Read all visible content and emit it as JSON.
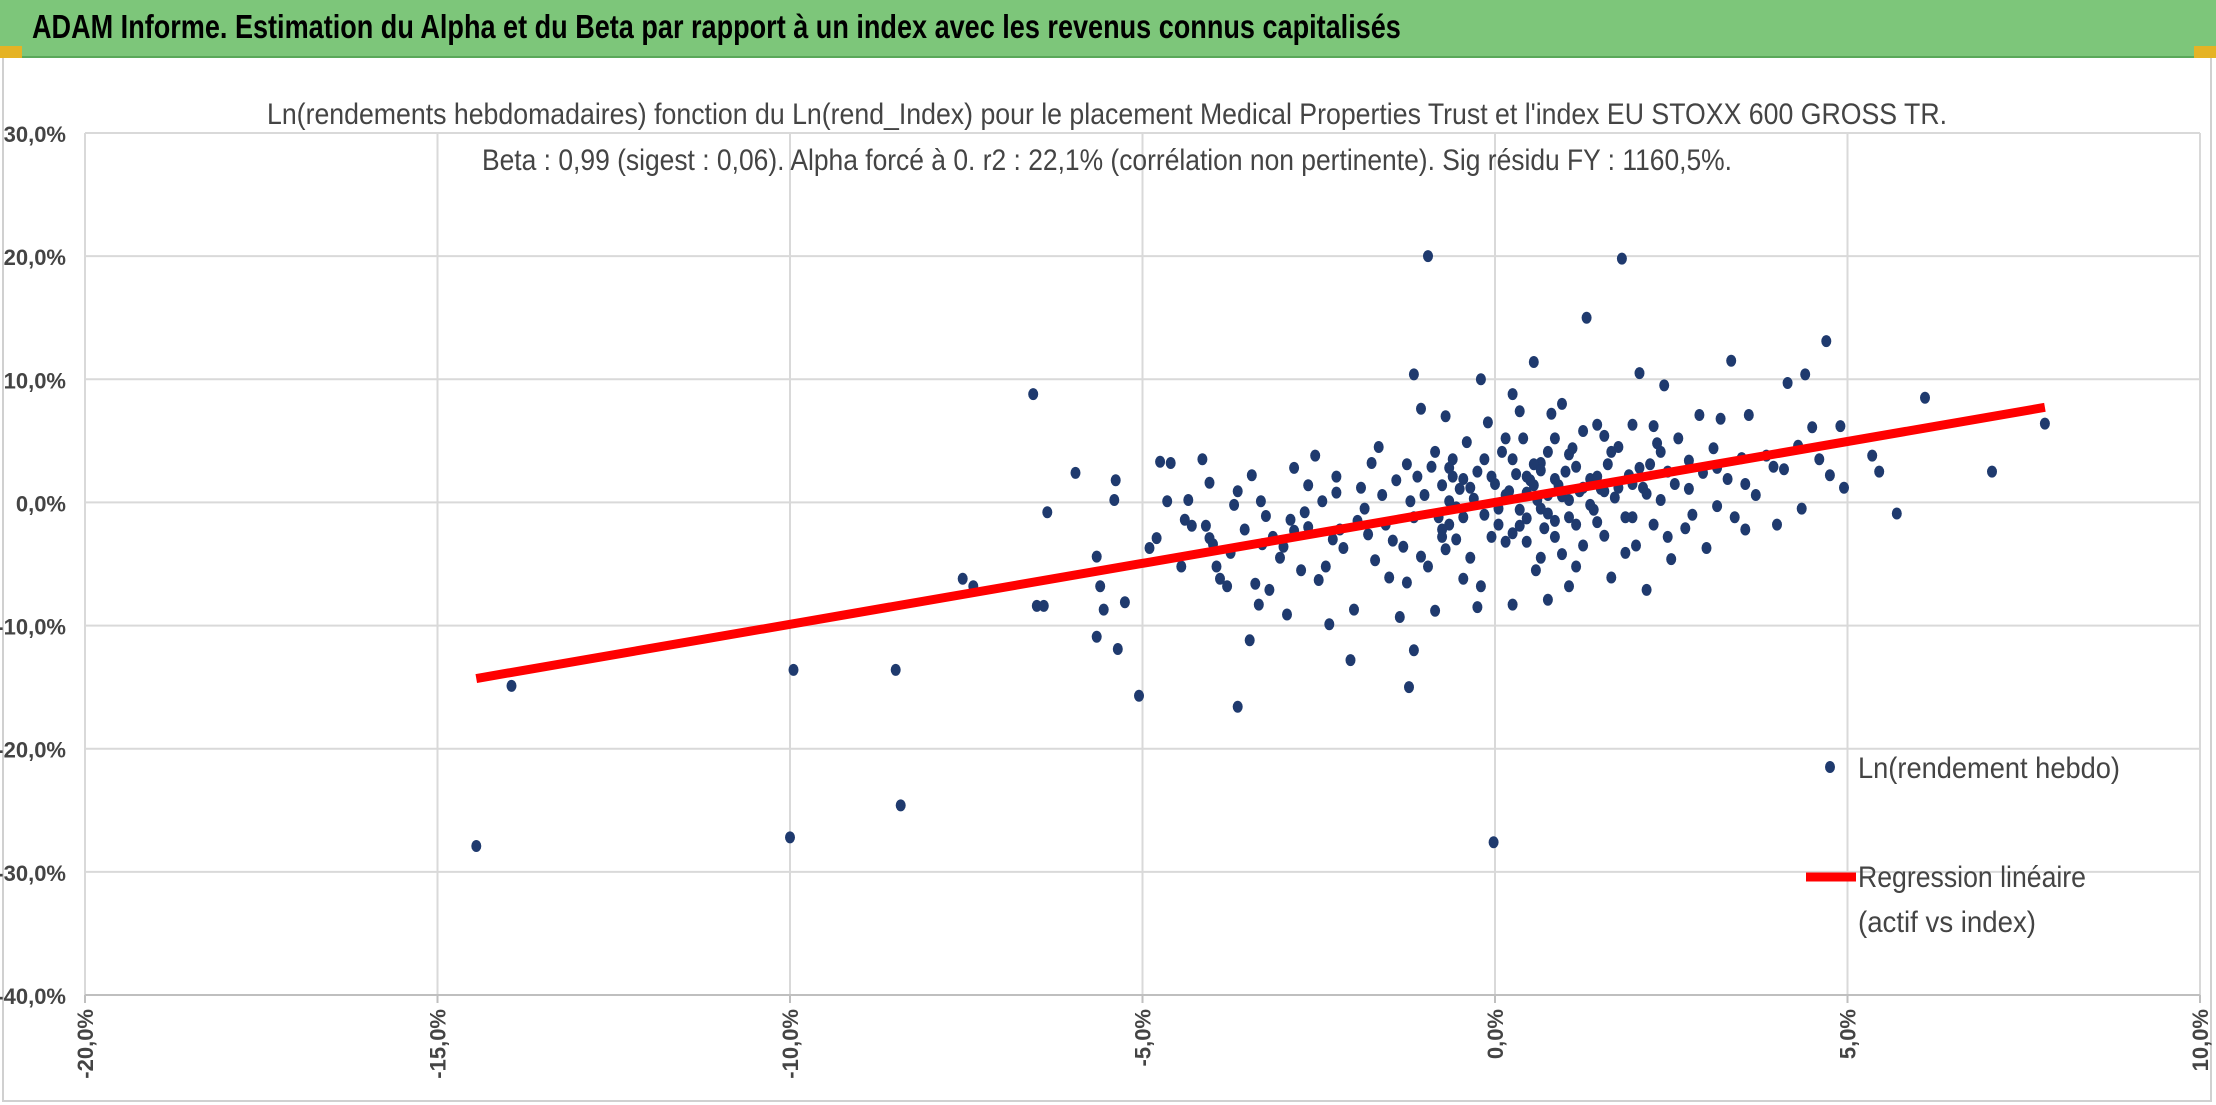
{
  "window": {
    "banner_title": "ADAM Informe. Estimation du Alpha et du Beta par rapport à un index avec les revenus connus capitalisés",
    "banner_color": "#7dc67a"
  },
  "chart_data": {
    "type": "scatter",
    "title": "Ln(rendements hebdomadaires) fonction du Ln(rend_Index) pour le placement Medical Properties Trust  et l'index EU STOXX 600 GROSS TR.",
    "subtitle": "Beta : 0,99 (sigest : 0,06). Alpha forcé à 0. r2 : 22,1% (corrélation non pertinente). Sig résidu FY : 1160,5%.",
    "xlabel": "",
    "ylabel": "",
    "xlim": [
      -0.2,
      0.1
    ],
    "ylim": [
      -0.4,
      0.3
    ],
    "x_ticks": [
      -0.2,
      -0.15,
      -0.1,
      -0.05,
      0.0,
      0.05,
      0.1
    ],
    "x_tick_labels": [
      "-20,0%",
      "-15,0%",
      "-10,0%",
      "-5,0%",
      "0,0%",
      "5,0%",
      "10,0%"
    ],
    "y_ticks": [
      0.3,
      0.2,
      0.1,
      0.0,
      -0.1,
      -0.2,
      -0.3,
      -0.4
    ],
    "y_tick_labels": [
      "30,0%",
      "20,0%",
      "10,0%",
      "0,0%",
      "-10,0%",
      "-20,0%",
      "-30,0%",
      "-40,0%"
    ],
    "grid": true,
    "legend_position": "right",
    "series": [
      {
        "name": "Ln(rendement hebdo)",
        "kind": "scatter",
        "color": "#1f3a6e",
        "points": [
          [
            -0.1445,
            -0.279
          ],
          [
            -0.1395,
            -0.149
          ],
          [
            -0.1,
            -0.272
          ],
          [
            -0.0995,
            -0.136
          ],
          [
            -0.085,
            -0.136
          ],
          [
            -0.0843,
            -0.246
          ],
          [
            -0.0755,
            -0.062
          ],
          [
            -0.074,
            -0.068
          ],
          [
            -0.0655,
            0.088
          ],
          [
            -0.065,
            -0.084
          ],
          [
            -0.064,
            -0.084
          ],
          [
            -0.0635,
            -0.008
          ],
          [
            -0.0595,
            0.024
          ],
          [
            -0.0565,
            -0.044
          ],
          [
            -0.056,
            -0.068
          ],
          [
            -0.0565,
            -0.109
          ],
          [
            -0.0555,
            -0.087
          ],
          [
            -0.054,
            0.002
          ],
          [
            -0.0538,
            0.018
          ],
          [
            -0.0535,
            -0.119
          ],
          [
            -0.0525,
            -0.081
          ],
          [
            -0.0505,
            -0.157
          ],
          [
            -0.049,
            -0.037
          ],
          [
            -0.048,
            -0.029
          ],
          [
            -0.0475,
            0.033
          ],
          [
            -0.0465,
            0.001
          ],
          [
            -0.046,
            0.032
          ],
          [
            -0.044,
            -0.014
          ],
          [
            -0.043,
            -0.019
          ],
          [
            -0.0435,
            0.002
          ],
          [
            -0.0415,
            0.035
          ],
          [
            -0.041,
            -0.019
          ],
          [
            -0.04,
            -0.034
          ],
          [
            -0.0405,
            0.016
          ],
          [
            -0.0395,
            -0.052
          ],
          [
            -0.039,
            -0.062
          ],
          [
            -0.038,
            -0.068
          ],
          [
            -0.0375,
            -0.041
          ],
          [
            -0.037,
            -0.002
          ],
          [
            -0.0365,
            -0.166
          ],
          [
            -0.0355,
            -0.022
          ],
          [
            -0.0348,
            -0.112
          ],
          [
            -0.034,
            -0.066
          ],
          [
            -0.0335,
            -0.083
          ],
          [
            -0.0332,
            0.001
          ],
          [
            -0.033,
            -0.034
          ],
          [
            -0.032,
            -0.071
          ],
          [
            -0.0315,
            -0.028
          ],
          [
            -0.03,
            -0.036
          ],
          [
            -0.0295,
            -0.091
          ],
          [
            -0.029,
            -0.014
          ],
          [
            -0.0285,
            -0.023
          ],
          [
            -0.0275,
            -0.055
          ],
          [
            -0.027,
            -0.008
          ],
          [
            -0.0265,
            -0.02
          ],
          [
            -0.0255,
            0.038
          ],
          [
            -0.025,
            -0.063
          ],
          [
            -0.0245,
            0.001
          ],
          [
            -0.024,
            -0.052
          ],
          [
            -0.0235,
            -0.099
          ],
          [
            -0.023,
            -0.03
          ],
          [
            -0.0225,
            0.021
          ],
          [
            -0.022,
            -0.022
          ],
          [
            -0.0215,
            -0.037
          ],
          [
            -0.0205,
            -0.128
          ],
          [
            -0.02,
            -0.087
          ],
          [
            -0.0195,
            -0.015
          ],
          [
            -0.019,
            0.012
          ],
          [
            -0.018,
            -0.026
          ],
          [
            -0.0175,
            0.032
          ],
          [
            -0.017,
            -0.047
          ],
          [
            -0.0165,
            0.045
          ],
          [
            -0.016,
            0.006
          ],
          [
            -0.015,
            -0.061
          ],
          [
            -0.0145,
            -0.031
          ],
          [
            -0.014,
            0.018
          ],
          [
            -0.0135,
            -0.093
          ],
          [
            -0.013,
            -0.036
          ],
          [
            -0.0125,
            -0.065
          ],
          [
            -0.012,
            0.001
          ],
          [
            -0.0115,
            -0.012
          ],
          [
            -0.011,
            0.021
          ],
          [
            -0.0105,
            -0.044
          ],
          [
            -0.01,
            0.006
          ],
          [
            -0.0095,
            -0.052
          ],
          [
            -0.009,
            0.029
          ],
          [
            -0.0085,
            -0.088
          ],
          [
            -0.008,
            -0.012
          ],
          [
            -0.0075,
            0.014
          ],
          [
            -0.007,
            -0.038
          ],
          [
            -0.0065,
            0.001
          ],
          [
            -0.006,
            0.021
          ],
          [
            -0.0055,
            -0.03
          ],
          [
            -0.0115,
            0.104
          ],
          [
            -0.0115,
            -0.12
          ],
          [
            -0.0122,
            -0.15
          ],
          [
            -0.0105,
            0.076
          ],
          [
            -0.0095,
            0.2
          ],
          [
            -0.007,
            0.07
          ],
          [
            -0.0075,
            -0.028
          ],
          [
            -0.0065,
            -0.018
          ],
          [
            -0.006,
            0.035
          ],
          [
            -0.005,
            0.011
          ],
          [
            -0.0045,
            -0.012
          ],
          [
            -0.004,
            0.049
          ],
          [
            -0.0035,
            -0.045
          ],
          [
            -0.003,
            0.003
          ],
          [
            -0.0025,
            0.025
          ],
          [
            -0.002,
            -0.068
          ],
          [
            -0.002,
            0.1
          ],
          [
            -0.0015,
            -0.01
          ],
          [
            -0.001,
            0.065
          ],
          [
            -0.0005,
            -0.028
          ],
          [
            0.0,
            0.015
          ],
          [
            -0.0002,
            -0.276
          ],
          [
            0.0005,
            -0.005
          ],
          [
            0.001,
            0.041
          ],
          [
            0.0015,
            -0.032
          ],
          [
            0.002,
            0.009
          ],
          [
            0.0025,
            -0.083
          ],
          [
            0.003,
            0.023
          ],
          [
            0.0035,
            -0.006
          ],
          [
            0.004,
            0.052
          ],
          [
            0.0045,
            -0.013
          ],
          [
            0.005,
            0.018
          ],
          [
            0.0055,
            0.114
          ],
          [
            0.0058,
            -0.055
          ],
          [
            0.006,
            0.002
          ],
          [
            0.0065,
            0.032
          ],
          [
            0.007,
            -0.021
          ],
          [
            0.0075,
            0.006
          ],
          [
            0.008,
            0.072
          ],
          [
            0.0085,
            -0.015
          ],
          [
            0.009,
            0.014
          ],
          [
            0.0095,
            -0.042
          ],
          [
            0.01,
            0.025
          ],
          [
            0.0105,
            0.002
          ],
          [
            0.011,
            0.044
          ],
          [
            0.0115,
            -0.018
          ],
          [
            0.012,
            0.009
          ],
          [
            0.0125,
            -0.035
          ],
          [
            0.013,
            0.15
          ],
          [
            0.0135,
            0.019
          ],
          [
            0.014,
            -0.006
          ],
          [
            0.0145,
            0.063
          ],
          [
            0.015,
            0.011
          ],
          [
            0.0155,
            -0.027
          ],
          [
            0.016,
            0.031
          ],
          [
            0.0165,
            -0.061
          ],
          [
            0.017,
            0.004
          ],
          [
            0.0175,
            0.045
          ],
          [
            0.018,
            0.198
          ],
          [
            0.0185,
            -0.012
          ],
          [
            0.019,
            0.022
          ],
          [
            0.0195,
            0.063
          ],
          [
            0.02,
            -0.035
          ],
          [
            0.0205,
            0.105
          ],
          [
            0.021,
            0.012
          ],
          [
            0.0215,
            -0.071
          ],
          [
            0.022,
            0.031
          ],
          [
            0.0225,
            -0.018
          ],
          [
            0.023,
            0.048
          ],
          [
            0.0235,
            0.002
          ],
          [
            0.024,
            0.095
          ],
          [
            0.0245,
            0.025
          ],
          [
            0.025,
            -0.046
          ],
          [
            0.0255,
            0.015
          ],
          [
            0.026,
            0.052
          ],
          [
            0.027,
            -0.021
          ],
          [
            0.0275,
            0.034
          ],
          [
            0.028,
            -0.01
          ],
          [
            0.029,
            0.071
          ],
          [
            0.0295,
            0.024
          ],
          [
            0.03,
            -0.037
          ],
          [
            0.031,
            0.044
          ],
          [
            0.0315,
            -0.003
          ],
          [
            0.032,
            0.068
          ],
          [
            0.033,
            0.019
          ],
          [
            0.0335,
            0.115
          ],
          [
            0.034,
            -0.012
          ],
          [
            0.035,
            0.036
          ],
          [
            0.036,
            0.071
          ],
          [
            0.0355,
            -0.022
          ],
          [
            0.037,
            0.006
          ],
          [
            0.0385,
            0.038
          ],
          [
            0.04,
            -0.018
          ],
          [
            0.041,
            0.027
          ],
          [
            0.0415,
            0.097
          ],
          [
            0.043,
            0.046
          ],
          [
            0.0435,
            -0.005
          ],
          [
            0.044,
            0.104
          ],
          [
            0.045,
            0.061
          ],
          [
            0.046,
            0.035
          ],
          [
            0.047,
            0.131
          ],
          [
            0.0475,
            0.022
          ],
          [
            0.049,
            0.062
          ],
          [
            0.0495,
            0.012
          ],
          [
            0.0535,
            0.038
          ],
          [
            0.0545,
            0.025
          ],
          [
            0.057,
            -0.009
          ],
          [
            0.061,
            0.085
          ],
          [
            0.0705,
            0.025
          ],
          [
            0.078,
            0.064
          ],
          [
            0.0055,
            0.031
          ],
          [
            0.0065,
            -0.045
          ],
          [
            0.0085,
            0.052
          ],
          [
            0.0095,
            0.08
          ],
          [
            0.0105,
            -0.068
          ],
          [
            0.0015,
            0.052
          ],
          [
            0.0025,
            0.088
          ],
          [
            0.0035,
            -0.019
          ],
          [
            -0.0015,
            0.035
          ],
          [
            -0.0025,
            -0.085
          ],
          [
            0.0045,
            0.021
          ],
          [
            0.0075,
            -0.079
          ],
          [
            0.0105,
            0.039
          ],
          [
            0.0125,
            0.058
          ],
          [
            0.0145,
            0.021
          ],
          [
            0.0165,
            0.041
          ],
          [
            0.0185,
            -0.041
          ],
          [
            0.0205,
            0.028
          ],
          [
            0.0225,
            0.062
          ],
          [
            0.0245,
            -0.028
          ],
          [
            -0.0005,
            0.021
          ],
          [
            0.0015,
            0.006
          ],
          [
            0.0025,
            0.035
          ],
          [
            0.0045,
            0.008
          ],
          [
            0.0055,
            0.014
          ],
          [
            0.0065,
            0.026
          ],
          [
            0.0075,
            -0.009
          ],
          [
            0.0085,
            0.019
          ],
          [
            0.0095,
            0.005
          ],
          [
            0.0115,
            0.029
          ],
          [
            0.0135,
            -0.002
          ],
          [
            0.0155,
            0.009
          ],
          [
            0.0175,
            0.012
          ],
          [
            0.0195,
            0.015
          ],
          [
            0.0215,
            0.007
          ],
          [
            -0.0035,
            0.012
          ],
          [
            -0.0045,
            0.019
          ],
          [
            -0.0055,
            -0.004
          ],
          [
            -0.0065,
            0.028
          ],
          [
            -0.0075,
            -0.022
          ],
          [
            0.0005,
            -0.018
          ],
          [
            0.0025,
            -0.025
          ],
          [
            0.0045,
            -0.032
          ],
          [
            0.0065,
            -0.005
          ],
          [
            0.0085,
            -0.028
          ],
          [
            0.0105,
            -0.012
          ],
          [
            0.0125,
            0.012
          ],
          [
            0.0145,
            -0.016
          ],
          [
            -0.0185,
            -0.005
          ],
          [
            -0.0225,
            0.008
          ],
          [
            -0.0265,
            0.014
          ],
          [
            -0.0305,
            -0.045
          ],
          [
            -0.0345,
            0.022
          ],
          [
            -0.0155,
            -0.018
          ],
          [
            -0.0125,
            0.031
          ],
          [
            -0.0085,
            0.041
          ],
          [
            -0.0045,
            -0.062
          ],
          [
            0.0035,
            0.074
          ],
          [
            0.0075,
            0.041
          ],
          [
            0.0115,
            -0.052
          ],
          [
            0.0155,
            0.054
          ],
          [
            0.0195,
            -0.012
          ],
          [
            0.0235,
            0.041
          ],
          [
            0.0275,
            0.011
          ],
          [
            0.0315,
            0.028
          ],
          [
            0.0355,
            0.015
          ],
          [
            0.0395,
            0.029
          ],
          [
            -0.0285,
            0.028
          ],
          [
            -0.0325,
            -0.011
          ],
          [
            -0.0365,
            0.009
          ],
          [
            -0.0405,
            -0.029
          ],
          [
            -0.0445,
            -0.052
          ]
        ]
      },
      {
        "name": "Regression linéaire\n(actif vs index)",
        "kind": "line",
        "color": "#ff0000",
        "points": [
          [
            -0.1445,
            -0.143
          ],
          [
            0.078,
            0.0772
          ]
        ]
      }
    ],
    "legend_entries": [
      {
        "label_lines": [
          "Ln(rendement hebdo)"
        ],
        "kind": "marker",
        "color": "#1f3a6e"
      },
      {
        "label_lines": [
          "Regression linéaire",
          "(actif vs index)"
        ],
        "kind": "line",
        "color": "#ff0000"
      }
    ]
  }
}
